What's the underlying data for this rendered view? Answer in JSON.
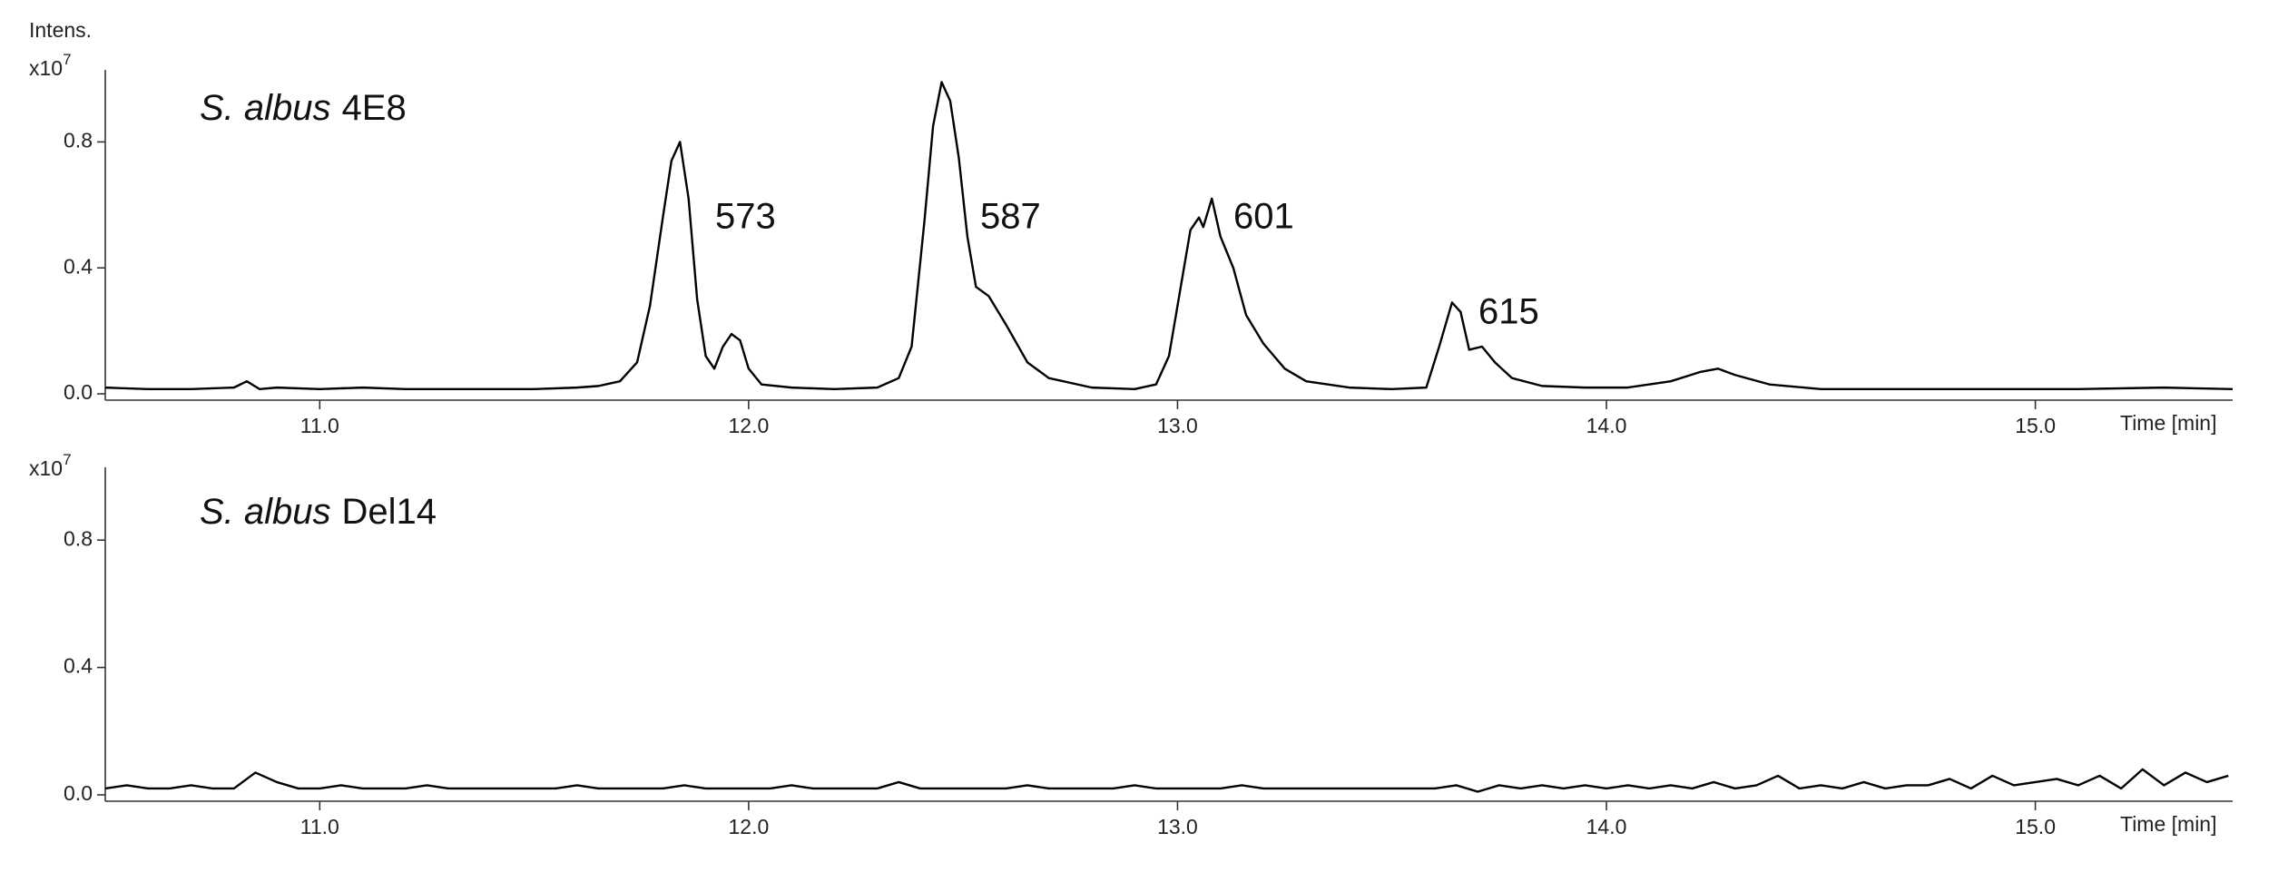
{
  "chart_data": [
    {
      "type": "line",
      "organism": "S. albus",
      "strain": "4E8",
      "y_label": "Intens.",
      "y_multiplier": {
        "base": "x10",
        "exponent": "7"
      },
      "x_label": "Time [min]",
      "annotations": [
        "573",
        "587",
        "601",
        "615"
      ],
      "color": "#000000",
      "xlim": [
        10.5,
        15.46
      ],
      "xticks": [
        {
          "value": 11,
          "label": "11.0"
        },
        {
          "value": 12,
          "label": "12.0"
        },
        {
          "value": 13,
          "label": "13.0"
        },
        {
          "value": 14,
          "label": "14.0"
        },
        {
          "value": 15,
          "label": "15.0"
        }
      ],
      "ylim": [
        -0.02,
        1.0
      ],
      "yticks": [
        {
          "value": 0,
          "label": "0.0"
        },
        0.4,
        0.8
      ],
      "x": [
        10.5,
        10.6,
        10.7,
        10.8,
        10.83,
        10.86,
        10.9,
        11.0,
        11.1,
        11.2,
        11.3,
        11.4,
        11.5,
        11.6,
        11.65,
        11.7,
        11.74,
        11.77,
        11.8,
        11.82,
        11.84,
        11.86,
        11.88,
        11.9,
        11.92,
        11.94,
        11.96,
        11.98,
        12.0,
        12.03,
        12.1,
        12.2,
        12.3,
        12.35,
        12.38,
        12.41,
        12.43,
        12.45,
        12.47,
        12.49,
        12.51,
        12.53,
        12.56,
        12.6,
        12.65,
        12.7,
        12.8,
        12.9,
        12.95,
        12.98,
        13.01,
        13.03,
        13.05,
        13.06,
        13.08,
        13.1,
        13.13,
        13.16,
        13.2,
        13.25,
        13.3,
        13.4,
        13.5,
        13.58,
        13.61,
        13.64,
        13.66,
        13.68,
        13.71,
        13.74,
        13.78,
        13.85,
        13.95,
        14.05,
        14.15,
        14.22,
        14.26,
        14.3,
        14.38,
        14.5,
        14.7,
        14.9,
        15.1,
        15.3,
        15.46
      ],
      "values": [
        0.02,
        0.015,
        0.015,
        0.02,
        0.04,
        0.015,
        0.02,
        0.015,
        0.02,
        0.015,
        0.015,
        0.015,
        0.015,
        0.02,
        0.025,
        0.04,
        0.1,
        0.28,
        0.56,
        0.74,
        0.8,
        0.62,
        0.3,
        0.12,
        0.08,
        0.15,
        0.19,
        0.17,
        0.08,
        0.03,
        0.02,
        0.015,
        0.02,
        0.05,
        0.15,
        0.55,
        0.85,
        0.99,
        0.93,
        0.75,
        0.5,
        0.34,
        0.31,
        0.22,
        0.1,
        0.05,
        0.02,
        0.015,
        0.03,
        0.12,
        0.36,
        0.52,
        0.56,
        0.53,
        0.62,
        0.5,
        0.4,
        0.25,
        0.16,
        0.08,
        0.04,
        0.02,
        0.015,
        0.02,
        0.15,
        0.29,
        0.26,
        0.14,
        0.15,
        0.1,
        0.05,
        0.025,
        0.02,
        0.02,
        0.04,
        0.07,
        0.08,
        0.06,
        0.03,
        0.015,
        0.015,
        0.015,
        0.015,
        0.02,
        0.015
      ]
    },
    {
      "type": "line",
      "organism": "S. albus",
      "strain": "Del14",
      "y_multiplier": {
        "base": "x10",
        "exponent": "7"
      },
      "x_label": "Time [min]",
      "color": "#000000",
      "xlim": [
        10.5,
        15.46
      ],
      "xticks": [
        {
          "value": 11,
          "label": "11.0"
        },
        {
          "value": 12,
          "label": "12.0"
        },
        {
          "value": 13,
          "label": "13.0"
        },
        {
          "value": 14,
          "label": "14.0"
        },
        {
          "value": 15,
          "label": "15.0"
        }
      ],
      "ylim": [
        -0.02,
        1.0
      ],
      "yticks": [
        {
          "value": 0,
          "label": "0.0"
        },
        0.4,
        0.8
      ],
      "x": [
        10.5,
        10.55,
        10.6,
        10.65,
        10.7,
        10.75,
        10.8,
        10.85,
        10.9,
        10.95,
        11.0,
        11.05,
        11.1,
        11.15,
        11.2,
        11.25,
        11.3,
        11.35,
        11.4,
        11.45,
        11.5,
        11.55,
        11.6,
        11.65,
        11.7,
        11.75,
        11.8,
        11.85,
        11.9,
        11.95,
        12.0,
        12.05,
        12.1,
        12.15,
        12.2,
        12.25,
        12.3,
        12.35,
        12.4,
        12.45,
        12.5,
        12.55,
        12.6,
        12.65,
        12.7,
        12.75,
        12.8,
        12.85,
        12.9,
        12.95,
        13.0,
        13.05,
        13.1,
        13.15,
        13.2,
        13.25,
        13.3,
        13.35,
        13.4,
        13.45,
        13.5,
        13.55,
        13.6,
        13.65,
        13.7,
        13.75,
        13.8,
        13.85,
        13.9,
        13.95,
        14.0,
        14.05,
        14.1,
        14.15,
        14.2,
        14.25,
        14.3,
        14.35,
        14.4,
        14.45,
        14.5,
        14.55,
        14.6,
        14.65,
        14.7,
        14.75,
        14.8,
        14.85,
        14.9,
        14.95,
        15.0,
        15.05,
        15.1,
        15.15,
        15.2,
        15.25,
        15.3,
        15.35,
        15.4,
        15.45
      ],
      "values": [
        0.02,
        0.03,
        0.02,
        0.02,
        0.03,
        0.02,
        0.02,
        0.07,
        0.04,
        0.02,
        0.02,
        0.03,
        0.02,
        0.02,
        0.02,
        0.03,
        0.02,
        0.02,
        0.02,
        0.02,
        0.02,
        0.02,
        0.03,
        0.02,
        0.02,
        0.02,
        0.02,
        0.03,
        0.02,
        0.02,
        0.02,
        0.02,
        0.03,
        0.02,
        0.02,
        0.02,
        0.02,
        0.04,
        0.02,
        0.02,
        0.02,
        0.02,
        0.02,
        0.03,
        0.02,
        0.02,
        0.02,
        0.02,
        0.03,
        0.02,
        0.02,
        0.02,
        0.02,
        0.03,
        0.02,
        0.02,
        0.02,
        0.02,
        0.02,
        0.02,
        0.02,
        0.02,
        0.02,
        0.03,
        0.01,
        0.03,
        0.02,
        0.03,
        0.02,
        0.03,
        0.02,
        0.03,
        0.02,
        0.03,
        0.02,
        0.04,
        0.02,
        0.03,
        0.06,
        0.02,
        0.03,
        0.02,
        0.04,
        0.02,
        0.03,
        0.03,
        0.05,
        0.02,
        0.06,
        0.03,
        0.04,
        0.05,
        0.03,
        0.06,
        0.02,
        0.08,
        0.03,
        0.07,
        0.04,
        0.06
      ]
    }
  ]
}
